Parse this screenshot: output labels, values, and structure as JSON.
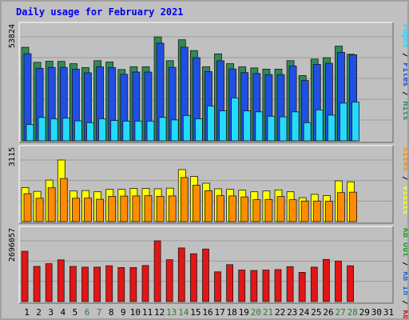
{
  "title": "Daily usage for February 2021",
  "colors": {
    "background": "#c0c0c0",
    "panel": "#c0c0c0",
    "grid": "#9c9c9c",
    "hits": "#2e8b57",
    "files": "#1f4fe3",
    "pages": "#26d9ff",
    "visits": "#ffff00",
    "sites": "#ff8c00",
    "kb_in": "#1c6bd6",
    "kb_out": "#1aa31a",
    "kb_f": "#e31515",
    "title": "#0000ee",
    "weekend_day": "#2e7d32",
    "weekday": "#000000"
  },
  "chart_data": [
    {
      "type": "bar",
      "title": "Daily usage for February 2021",
      "categories": [
        "1",
        "2",
        "3",
        "4",
        "5",
        "6",
        "7",
        "8",
        "9",
        "10",
        "11",
        "12",
        "13",
        "14",
        "15",
        "16",
        "17",
        "18",
        "19",
        "20",
        "21",
        "22",
        "23",
        "24",
        "25",
        "26",
        "27",
        "28",
        "29",
        "30",
        "31"
      ],
      "ymax_label": "53824",
      "ylim": [
        0,
        53824
      ],
      "legend": [
        {
          "label": "Hits",
          "color": "#2e8b57"
        },
        {
          "label": "Files",
          "color": "#1f4fe3"
        },
        {
          "label": "Pages",
          "color": "#26d9ff"
        }
      ],
      "series": [
        {
          "name": "Hits",
          "values": [
            48400,
            40600,
            41200,
            41100,
            39900,
            37900,
            41500,
            40800,
            36900,
            38300,
            38300,
            53800,
            41500,
            52300,
            46700,
            38300,
            45000,
            39900,
            38300,
            37700,
            37100,
            37100,
            41500,
            33800,
            42300,
            43000,
            49000,
            44800,
            null,
            null,
            null
          ]
        },
        {
          "name": "Files",
          "values": [
            45100,
            37500,
            38000,
            38000,
            37100,
            35200,
            38300,
            37900,
            34400,
            35600,
            35600,
            50500,
            38000,
            48500,
            43000,
            35800,
            41400,
            37200,
            35300,
            34800,
            34300,
            34300,
            38700,
            31200,
            39600,
            40100,
            45800,
            44500,
            null,
            null,
            null
          ]
        },
        {
          "name": "Pages",
          "values": [
            8400,
            12100,
            11400,
            11700,
            10300,
            9400,
            11400,
            10500,
            10200,
            10200,
            10200,
            12100,
            10800,
            13100,
            11400,
            18000,
            15500,
            22200,
            15500,
            15000,
            12700,
            12400,
            15000,
            9400,
            16000,
            13300,
            19500,
            20000,
            null,
            null,
            null
          ]
        }
      ]
    },
    {
      "type": "bar",
      "categories": [
        "1",
        "2",
        "3",
        "4",
        "5",
        "6",
        "7",
        "8",
        "9",
        "10",
        "11",
        "12",
        "13",
        "14",
        "15",
        "16",
        "17",
        "18",
        "19",
        "20",
        "21",
        "22",
        "23",
        "24",
        "25",
        "26",
        "27",
        "28",
        "29",
        "30",
        "31"
      ],
      "ymax_label": "3115",
      "ylim": [
        0,
        3115
      ],
      "legend": [
        {
          "label": "Visits",
          "color": "#ffff00"
        },
        {
          "label": "Sites",
          "color": "#ff8c00"
        }
      ],
      "series": [
        {
          "name": "Visits",
          "values": [
            1720,
            1530,
            2100,
            3115,
            1550,
            1570,
            1510,
            1630,
            1640,
            1680,
            1680,
            1660,
            1690,
            2630,
            2280,
            1940,
            1660,
            1630,
            1590,
            1510,
            1550,
            1600,
            1510,
            1210,
            1380,
            1310,
            2060,
            2010,
            null,
            null,
            null
          ]
        },
        {
          "name": "Sites",
          "values": [
            1410,
            1180,
            1710,
            2180,
            1180,
            1190,
            1130,
            1280,
            1290,
            1300,
            1310,
            1280,
            1300,
            2230,
            1840,
            1560,
            1310,
            1300,
            1250,
            1110,
            1120,
            1270,
            1110,
            1040,
            1040,
            1030,
            1470,
            1490,
            null,
            null,
            null
          ]
        }
      ]
    },
    {
      "type": "bar",
      "categories": [
        "1",
        "2",
        "3",
        "4",
        "5",
        "6",
        "7",
        "8",
        "9",
        "10",
        "11",
        "12",
        "13",
        "14",
        "15",
        "16",
        "17",
        "18",
        "19",
        "20",
        "21",
        "22",
        "23",
        "24",
        "25",
        "26",
        "27",
        "28",
        "29",
        "30",
        "31"
      ],
      "ymax_label": "2696057",
      "ylim": [
        0,
        2696057
      ],
      "legend": [
        {
          "label": "KB F",
          "color": "#e31515"
        },
        {
          "label": "KB In",
          "color": "#1c6bd6"
        },
        {
          "label": "KB Out",
          "color": "#1aa31a"
        }
      ],
      "series": [
        {
          "name": "KB F",
          "values": [
            2230000,
            1560000,
            1680000,
            1850000,
            1560000,
            1530000,
            1530000,
            1590000,
            1510000,
            1510000,
            1600000,
            2696057,
            1860000,
            2380000,
            2120000,
            2330000,
            1320000,
            1640000,
            1400000,
            1380000,
            1400000,
            1420000,
            1550000,
            1300000,
            1530000,
            1870000,
            1800000,
            1590000,
            null,
            null,
            null
          ]
        }
      ]
    }
  ],
  "day_labels": [
    "1",
    "2",
    "3",
    "4",
    "5",
    "6",
    "7",
    "8",
    "9",
    "10",
    "11",
    "12",
    "13",
    "14",
    "15",
    "16",
    "17",
    "18",
    "19",
    "20",
    "21",
    "22",
    "23",
    "24",
    "25",
    "26",
    "27",
    "28",
    "29",
    "30",
    "31"
  ],
  "weekend_days": [
    6,
    7,
    13,
    14,
    20,
    21,
    27,
    28
  ]
}
